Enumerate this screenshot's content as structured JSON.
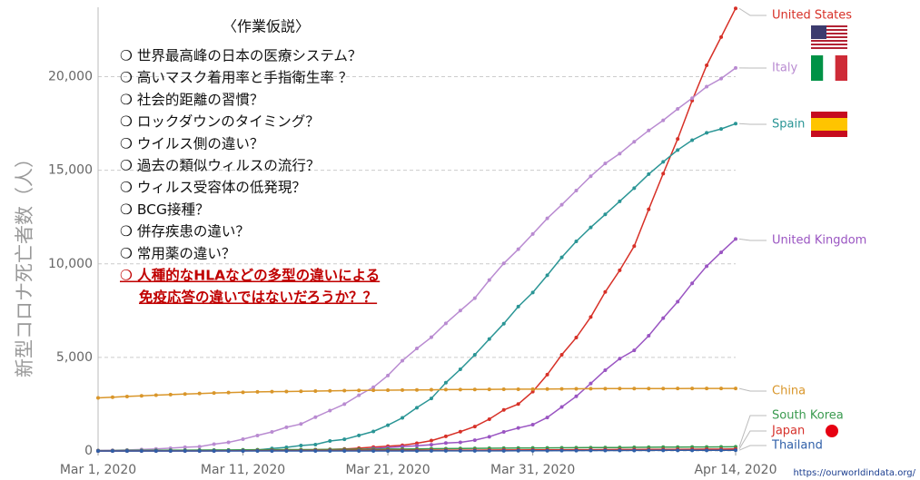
{
  "chart_data": {
    "type": "line",
    "ylabel": "新型コロナ死亡者数（人）",
    "source": "https://ourworldindata.org/",
    "annotations": [
      "〈作業仮説〉",
      "❍ 世界最高峰の日本の医療システム？",
      "❍ 高いマスク着用率と手指衛生率 ？",
      "❍ 社会的距離の習慣？",
      "❍ ロックダウンのタイミング？",
      "❍ ウイルス側の違い？",
      "❍ 過去の類似ウィルスの流行？",
      "❍ ウィルス受容体の低発現？",
      "❍ BCG接種？",
      "❍ 併存疾患の違い？",
      "❍ 常用薬の違い？"
    ],
    "highlight": [
      "❍ 人種的なHLAなどの多型の違いによる",
      "免疫応答の違いではないだろうか？？"
    ],
    "xlim": [
      "2020-03-01",
      "2020-04-14"
    ],
    "xticks": [
      {
        "value": "2020-03-01",
        "label": "Mar 1, 2020"
      },
      {
        "value": "2020-03-11",
        "label": "Mar 11, 2020"
      },
      {
        "value": "2020-03-21",
        "label": "Mar 21, 2020"
      },
      {
        "value": "2020-03-31",
        "label": "Mar 31, 2020"
      },
      {
        "value": "2020-04-14",
        "label": "Apr 14, 2020"
      }
    ],
    "ylim": [
      0,
      24000
    ],
    "yticks": [
      0,
      {
        "value": 5000,
        "label": "5,000"
      },
      {
        "value": 10000,
        "label": "10,000"
      },
      {
        "value": 15000,
        "label": "15,000"
      },
      {
        "value": 20000,
        "label": "20,000"
      }
    ],
    "grid": true,
    "x": [
      "2020-03-01",
      "2020-03-02",
      "2020-03-03",
      "2020-03-04",
      "2020-03-05",
      "2020-03-06",
      "2020-03-07",
      "2020-03-08",
      "2020-03-09",
      "2020-03-10",
      "2020-03-11",
      "2020-03-12",
      "2020-03-13",
      "2020-03-14",
      "2020-03-15",
      "2020-03-16",
      "2020-03-17",
      "2020-03-18",
      "2020-03-19",
      "2020-03-20",
      "2020-03-21",
      "2020-03-22",
      "2020-03-23",
      "2020-03-24",
      "2020-03-25",
      "2020-03-26",
      "2020-03-27",
      "2020-03-28",
      "2020-03-29",
      "2020-03-30",
      "2020-03-31",
      "2020-04-01",
      "2020-04-02",
      "2020-04-03",
      "2020-04-04",
      "2020-04-05",
      "2020-04-06",
      "2020-04-07",
      "2020-04-08",
      "2020-04-09",
      "2020-04-10",
      "2020-04-11",
      "2020-04-12",
      "2020-04-13",
      "2020-04-14"
    ],
    "series": [
      {
        "name": "United States",
        "color": "#d73027",
        "values": [
          1,
          1,
          6,
          9,
          11,
          12,
          15,
          19,
          22,
          26,
          30,
          38,
          41,
          48,
          57,
          68,
          86,
          109,
          150,
          206,
          255,
          301,
          414,
          555,
          780,
          1032,
          1303,
          1700,
          2191,
          2509,
          3170,
          4076,
          5138,
          6058,
          7159,
          8496,
          9654,
          10943,
          12910,
          14817,
          16672,
          18720,
          20608,
          22115,
          23649
        ]
      },
      {
        "name": "Italy",
        "color": "#b98bd1",
        "values": [
          29,
          34,
          52,
          79,
          107,
          148,
          197,
          233,
          366,
          463,
          631,
          827,
          1016,
          1266,
          1441,
          1809,
          2158,
          2503,
          2978,
          3405,
          4032,
          4825,
          5476,
          6077,
          6820,
          7503,
          8165,
          9134,
          10023,
          10779,
          11591,
          12428,
          13155,
          13915,
          14681,
          15362,
          15887,
          16523,
          17127,
          17669,
          18279,
          18849,
          19468,
          19899,
          20465
        ]
      },
      {
        "name": "Spain",
        "color": "#2a9595",
        "values": [
          0,
          0,
          1,
          2,
          3,
          5,
          10,
          17,
          28,
          35,
          54,
          55,
          133,
          195,
          289,
          342,
          533,
          623,
          830,
          1043,
          1375,
          1772,
          2311,
          2808,
          3647,
          4365,
          5138,
          5982,
          6803,
          7716,
          8464,
          9387,
          10348,
          11198,
          11947,
          12641,
          13341,
          14045,
          14792,
          15447,
          16081,
          16606,
          17000,
          17209,
          17489
        ]
      },
      {
        "name": "United Kingdom",
        "color": "#9a55c2",
        "values": [
          0,
          0,
          0,
          0,
          1,
          1,
          2,
          2,
          3,
          4,
          6,
          8,
          8,
          11,
          21,
          21,
          55,
          56,
          72,
          137,
          177,
          233,
          281,
          335,
          422,
          463,
          578,
          759,
          1019,
          1228,
          1408,
          1789,
          2352,
          2921,
          3605,
          4313,
          4934,
          5373,
          6159,
          7097,
          7978,
          8958,
          9875,
          10612,
          11329
        ]
      },
      {
        "name": "China",
        "color": "#d9962a",
        "values": [
          2835,
          2870,
          2912,
          2943,
          2981,
          3012,
          3042,
          3070,
          3097,
          3119,
          3136,
          3158,
          3169,
          3176,
          3189,
          3199,
          3213,
          3226,
          3237,
          3245,
          3248,
          3255,
          3261,
          3270,
          3277,
          3281,
          3287,
          3292,
          3295,
          3300,
          3304,
          3308,
          3316,
          3322,
          3326,
          3330,
          3331,
          3333,
          3335,
          3336,
          3337,
          3339,
          3340,
          3341,
          3341
        ]
      },
      {
        "name": "South Korea",
        "color": "#3a9a4f",
        "values": [
          17,
          21,
          28,
          32,
          35,
          42,
          44,
          50,
          51,
          54,
          60,
          66,
          67,
          72,
          75,
          75,
          81,
          84,
          91,
          94,
          102,
          104,
          111,
          120,
          124,
          131,
          139,
          144,
          152,
          158,
          162,
          165,
          169,
          174,
          177,
          183,
          186,
          192,
          200,
          204,
          208,
          211,
          214,
          217,
          222
        ]
      },
      {
        "name": "Japan",
        "color": "#d6312b",
        "values": [
          6,
          6,
          6,
          6,
          6,
          6,
          6,
          7,
          7,
          9,
          15,
          19,
          22,
          22,
          24,
          28,
          29,
          29,
          33,
          35,
          35,
          36,
          41,
          42,
          43,
          45,
          45,
          49,
          52,
          54,
          56,
          57,
          63,
          69,
          70,
          73,
          77,
          80,
          81,
          85,
          88,
          94,
          98,
          99,
          108
        ]
      },
      {
        "name": "Thailand",
        "color": "#2f5fa8",
        "values": [
          1,
          1,
          1,
          1,
          1,
          1,
          1,
          1,
          1,
          1,
          1,
          1,
          1,
          1,
          1,
          1,
          1,
          1,
          1,
          1,
          1,
          1,
          2,
          4,
          4,
          5,
          6,
          7,
          7,
          10,
          12,
          15,
          19,
          20,
          23,
          26,
          26,
          27,
          30,
          32,
          33,
          33,
          33,
          38,
          40
        ]
      }
    ]
  }
}
